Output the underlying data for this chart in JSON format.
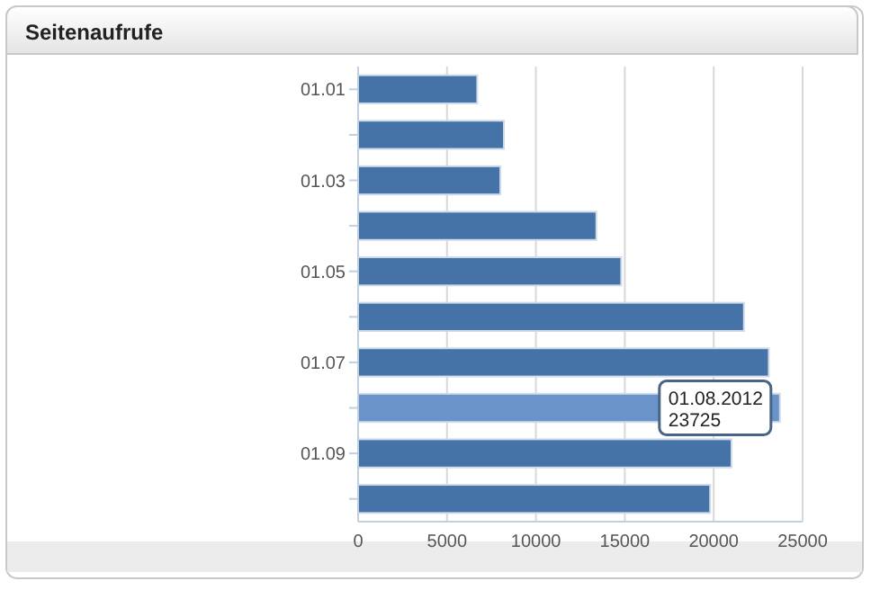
{
  "chart_data": {
    "type": "bar",
    "orientation": "horizontal",
    "title": "Seitenaufrufe",
    "categories": [
      "01.01",
      null,
      "01.03",
      null,
      "01.05",
      null,
      "01.07",
      null,
      "01.09",
      null
    ],
    "values": [
      6700,
      8200,
      8000,
      13400,
      14800,
      21700,
      23100,
      23725,
      21000,
      19800
    ],
    "colors": [
      "#4572a7",
      "#4572a7",
      "#4572a7",
      "#4572a7",
      "#4572a7",
      "#4572a7",
      "#4572a7",
      "#6a93c9",
      "#4572a7",
      "#4572a7"
    ],
    "xlim": [
      0,
      25000
    ],
    "xticks": [
      0,
      5000,
      10000,
      15000,
      20000,
      25000
    ],
    "grid": "x",
    "annotations": [
      {
        "text": "01.08.2012\n23725",
        "x": 23725
      }
    ]
  }
}
